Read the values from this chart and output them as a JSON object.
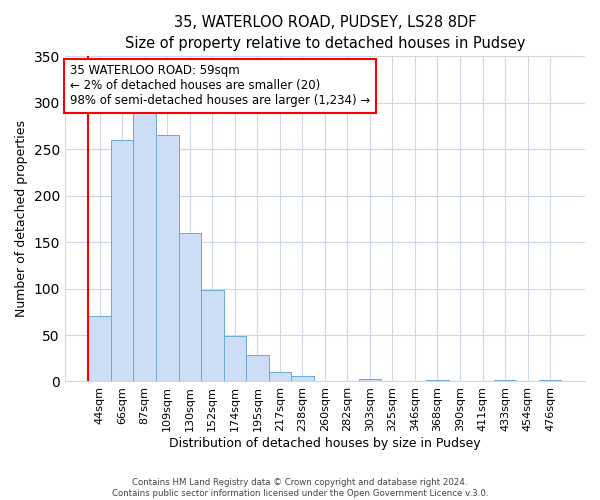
{
  "title": "35, WATERLOO ROAD, PUDSEY, LS28 8DF",
  "subtitle": "Size of property relative to detached houses in Pudsey",
  "xlabel": "Distribution of detached houses by size in Pudsey",
  "ylabel": "Number of detached properties",
  "bar_labels": [
    "44sqm",
    "66sqm",
    "87sqm",
    "109sqm",
    "130sqm",
    "152sqm",
    "174sqm",
    "195sqm",
    "217sqm",
    "238sqm",
    "260sqm",
    "282sqm",
    "303sqm",
    "325sqm",
    "346sqm",
    "368sqm",
    "390sqm",
    "411sqm",
    "433sqm",
    "454sqm",
    "476sqm"
  ],
  "bar_values": [
    70,
    260,
    293,
    265,
    160,
    98,
    49,
    29,
    10,
    6,
    1,
    1,
    3,
    1,
    1,
    2,
    1,
    1,
    2,
    1,
    2
  ],
  "bar_color": "#ccddf5",
  "bar_edge_color": "#6aaad4",
  "ylim": [
    0,
    350
  ],
  "yticks": [
    0,
    50,
    100,
    150,
    200,
    250,
    300,
    350
  ],
  "marker_color": "red",
  "annotation_text": "35 WATERLOO ROAD: 59sqm\n← 2% of detached houses are smaller (20)\n98% of semi-detached houses are larger (1,234) →",
  "annotation_box_color": "white",
  "annotation_box_edge_color": "red",
  "footer_line1": "Contains HM Land Registry data © Crown copyright and database right 2024.",
  "footer_line2": "Contains public sector information licensed under the Open Government Licence v.3.0.",
  "background_color": "white",
  "grid_color": "#d0d8e8",
  "title_fontsize": 10.5,
  "axis_label_fontsize": 9,
  "tick_fontsize": 8
}
